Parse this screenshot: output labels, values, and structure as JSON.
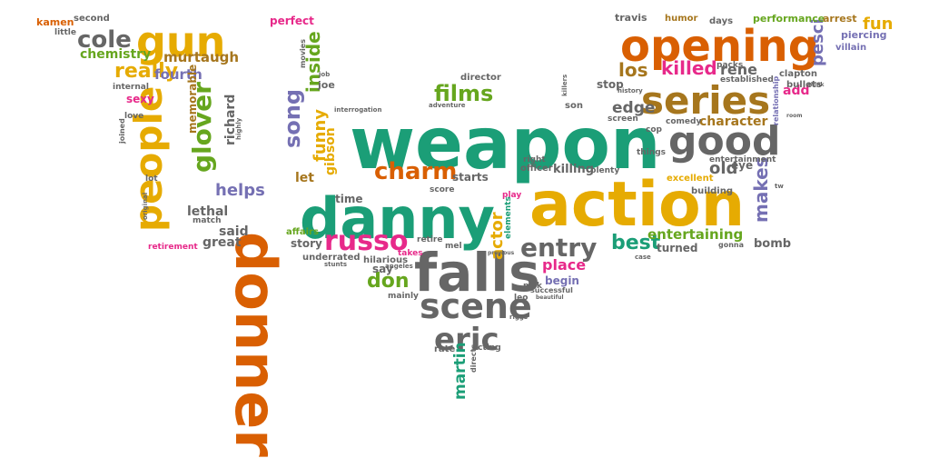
{
  "palette": {
    "teal": "#1b9e77",
    "orange": "#d95f02",
    "purple": "#7570b3",
    "pink": "#e7298a",
    "green": "#66a61e",
    "gold": "#e6ab02",
    "brown": "#a6761d",
    "gray": "#666666"
  },
  "words": [
    {
      "text": "weapon",
      "color": "teal"
    },
    {
      "text": "action",
      "color": "gold"
    },
    {
      "text": "danny",
      "color": "teal"
    },
    {
      "text": "falls",
      "color": "gray"
    },
    {
      "text": "donner",
      "color": "orange"
    },
    {
      "text": "opening",
      "color": "orange"
    },
    {
      "text": "gun",
      "color": "gold"
    },
    {
      "text": "good",
      "color": "gray"
    },
    {
      "text": "series",
      "color": "brown"
    },
    {
      "text": "people",
      "color": "gold"
    },
    {
      "text": "scene",
      "color": "gray"
    },
    {
      "text": "eric",
      "color": "gray"
    },
    {
      "text": "russo",
      "color": "pink"
    },
    {
      "text": "entry",
      "color": "gray"
    },
    {
      "text": "charm",
      "color": "orange"
    },
    {
      "text": "cole",
      "color": "gray"
    },
    {
      "text": "glover",
      "color": "green"
    },
    {
      "text": "song",
      "color": "purple"
    },
    {
      "text": "inside",
      "color": "green"
    },
    {
      "text": "films",
      "color": "green"
    },
    {
      "text": "killed",
      "color": "pink"
    },
    {
      "text": "makes",
      "color": "purple"
    },
    {
      "text": "best",
      "color": "teal"
    },
    {
      "text": "really",
      "color": "gold"
    },
    {
      "text": "los",
      "color": "brown"
    },
    {
      "text": "don",
      "color": "green"
    },
    {
      "text": "funny",
      "color": "gold"
    },
    {
      "text": "entertaining",
      "color": "green"
    },
    {
      "text": "helps",
      "color": "purple"
    },
    {
      "text": "murtaugh",
      "color": "brown"
    },
    {
      "text": "fourth",
      "color": "purple"
    },
    {
      "text": "rene",
      "color": "gray"
    },
    {
      "text": "edge",
      "color": "gray"
    },
    {
      "text": "character",
      "color": "brown"
    },
    {
      "text": "actor",
      "color": "gold"
    },
    {
      "text": "place",
      "color": "pink"
    },
    {
      "text": "old",
      "color": "gray"
    },
    {
      "text": "martin",
      "color": "teal"
    },
    {
      "text": "pesci",
      "color": "purple"
    },
    {
      "text": "fun",
      "color": "gold"
    },
    {
      "text": "richard",
      "color": "gray"
    },
    {
      "text": "gibson",
      "color": "gold"
    },
    {
      "text": "said",
      "color": "gray"
    },
    {
      "text": "lethal",
      "color": "gray"
    },
    {
      "text": "great",
      "color": "gray"
    },
    {
      "text": "let",
      "color": "brown"
    },
    {
      "text": "add",
      "color": "pink"
    },
    {
      "text": "chemistry",
      "color": "green"
    },
    {
      "text": "memorable",
      "color": "brown"
    },
    {
      "text": "story",
      "color": "gray"
    },
    {
      "text": "time",
      "color": "gray"
    },
    {
      "text": "turned",
      "color": "gray"
    },
    {
      "text": "bomb",
      "color": "gray"
    },
    {
      "text": "killing",
      "color": "gray"
    },
    {
      "text": "starts",
      "color": "gray"
    },
    {
      "text": "say",
      "color": "gray"
    },
    {
      "text": "begin",
      "color": "purple"
    },
    {
      "text": "perfect",
      "color": "pink"
    },
    {
      "text": "sexy",
      "color": "pink"
    },
    {
      "text": "joe",
      "color": "gray"
    },
    {
      "text": "eye",
      "color": "gray"
    },
    {
      "text": "stop",
      "color": "gray"
    },
    {
      "text": "performance",
      "color": "green"
    },
    {
      "text": "arrest",
      "color": "brown"
    },
    {
      "text": "kamen",
      "color": "orange"
    },
    {
      "text": "second",
      "color": "gray"
    },
    {
      "text": "travis",
      "color": "gray"
    },
    {
      "text": "humor",
      "color": "brown"
    },
    {
      "text": "days",
      "color": "gray"
    },
    {
      "text": "piercing",
      "color": "purple"
    },
    {
      "text": "villain",
      "color": "purple"
    },
    {
      "text": "clapton",
      "color": "gray"
    },
    {
      "text": "bullets",
      "color": "gray"
    },
    {
      "text": "packs",
      "color": "gray"
    },
    {
      "text": "established",
      "color": "gray"
    },
    {
      "text": "excellent",
      "color": "gold"
    },
    {
      "text": "building",
      "color": "gray"
    },
    {
      "text": "comedy",
      "color": "gray"
    },
    {
      "text": "entertainment",
      "color": "gray"
    },
    {
      "text": "officer",
      "color": "gray"
    },
    {
      "text": "plenty",
      "color": "gray"
    },
    {
      "text": "takes",
      "color": "pink"
    },
    {
      "text": "retire",
      "color": "gray"
    },
    {
      "text": "mel",
      "color": "gray"
    },
    {
      "text": "nick",
      "color": "gray"
    },
    {
      "text": "hilarious",
      "color": "gray"
    },
    {
      "text": "affairs",
      "color": "green"
    },
    {
      "text": "underrated",
      "color": "gray"
    },
    {
      "text": "acting",
      "color": "gray"
    },
    {
      "text": "leo",
      "color": "gray"
    },
    {
      "text": "rate",
      "color": "gray"
    },
    {
      "text": "director",
      "color": "gray"
    },
    {
      "text": "son",
      "color": "gray"
    },
    {
      "text": "retirement",
      "color": "pink"
    },
    {
      "text": "match",
      "color": "gray"
    },
    {
      "text": "love",
      "color": "gray"
    },
    {
      "text": "internal",
      "color": "gray"
    },
    {
      "text": "little",
      "color": "gray"
    },
    {
      "text": "movies",
      "color": "gray"
    },
    {
      "text": "interrogation",
      "color": "gray"
    },
    {
      "text": "score",
      "color": "gray"
    },
    {
      "text": "mainly",
      "color": "gray"
    },
    {
      "text": "successful",
      "color": "gray"
    },
    {
      "text": "lot",
      "color": "gray"
    },
    {
      "text": "play",
      "color": "pink"
    },
    {
      "text": "right",
      "color": "gray"
    },
    {
      "text": "screen",
      "color": "gray"
    },
    {
      "text": "things",
      "color": "gray"
    },
    {
      "text": "cop",
      "color": "gray"
    },
    {
      "text": "history",
      "color": "gray"
    },
    {
      "text": "elements",
      "color": "teal"
    },
    {
      "text": "directs",
      "color": "gray"
    },
    {
      "text": "gonna",
      "color": "gray"
    },
    {
      "text": "relationship",
      "color": "purple"
    },
    {
      "text": "job",
      "color": "gray"
    },
    {
      "text": "joined",
      "color": "gray"
    },
    {
      "text": "highly",
      "color": "gray"
    },
    {
      "text": "original",
      "color": "gray"
    },
    {
      "text": "adventure",
      "color": "gray"
    },
    {
      "text": "stunts",
      "color": "gray"
    },
    {
      "text": "angeles",
      "color": "gray"
    },
    {
      "text": "killers",
      "color": "gray"
    },
    {
      "text": "riggs",
      "color": "gray"
    },
    {
      "text": "previous",
      "color": "gray"
    },
    {
      "text": "beautiful",
      "color": "gray"
    },
    {
      "text": "case",
      "color": "gray"
    },
    {
      "text": "think",
      "color": "gray"
    },
    {
      "text": "room",
      "color": "gray"
    },
    {
      "text": "tw",
      "color": "gray"
    }
  ]
}
